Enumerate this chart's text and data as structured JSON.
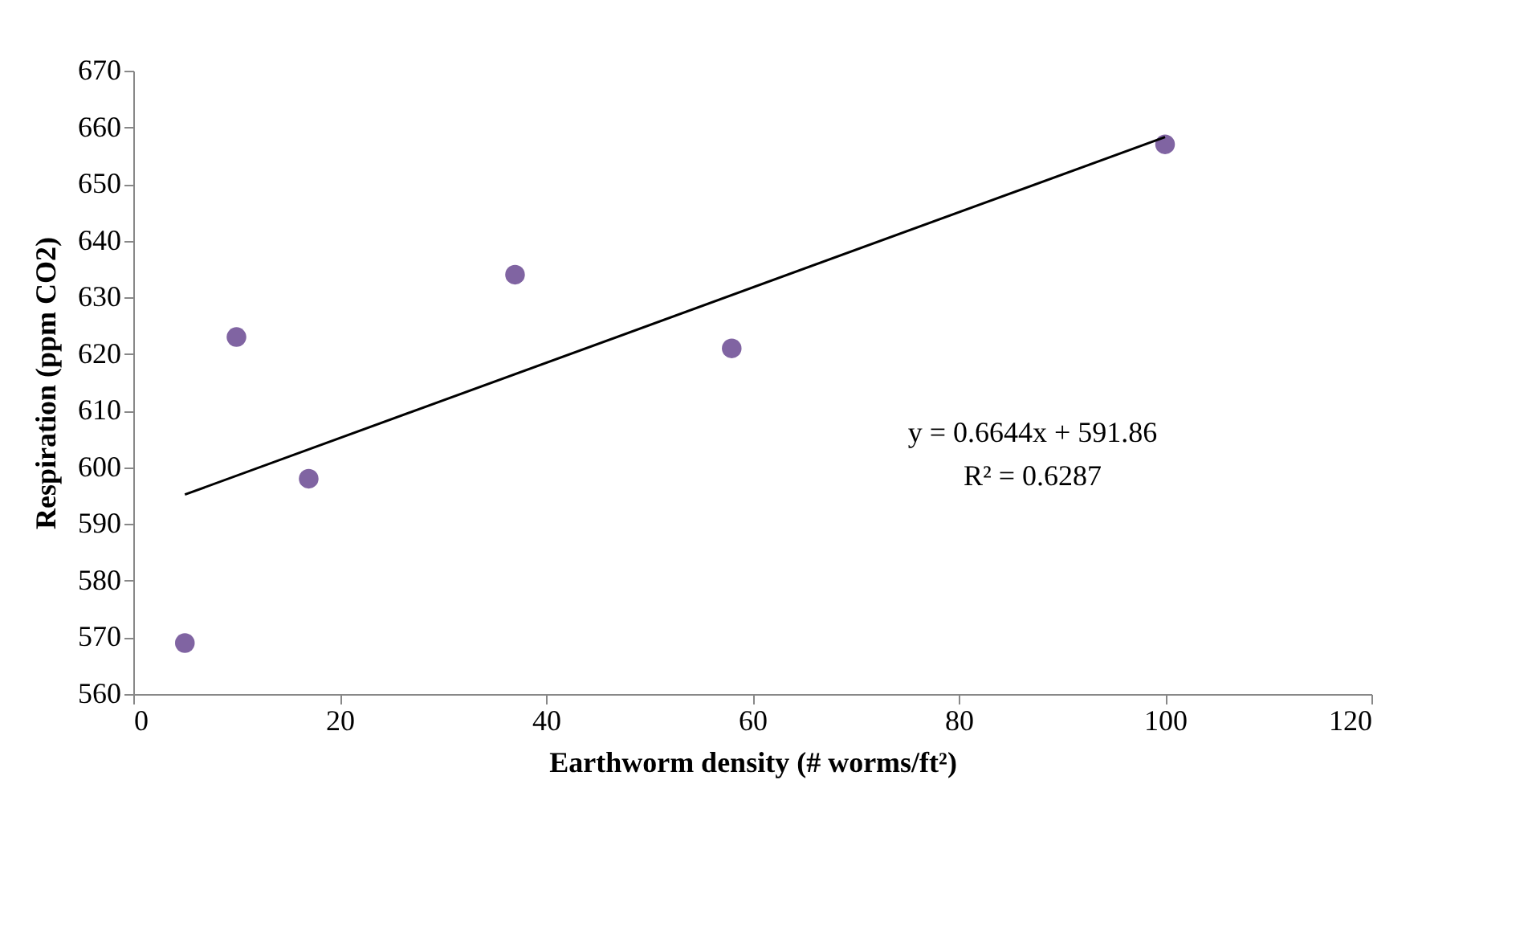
{
  "chart_data": {
    "type": "scatter",
    "xlabel": "Earthworm density (# worms/ft²)",
    "ylabel": "Respiration (ppm CO2)",
    "series": [
      {
        "color": "#8064a2",
        "marker": "circle",
        "x": [
          5,
          10,
          17,
          37,
          58,
          100
        ],
        "values": [
          569,
          623,
          598,
          634,
          621,
          657
        ]
      },
      {
        "type": "line",
        "color": "#000000",
        "marker": "none",
        "line_style": "solid",
        "x": [
          5,
          100
        ],
        "values": [
          595.2,
          658.3
        ]
      }
    ],
    "annotations": [
      "y = 0.6644x + 591.86",
      "R² = 0.6287"
    ],
    "xlim": [
      0,
      120
    ],
    "xticks": [
      0,
      20,
      40,
      60,
      80,
      100,
      120
    ],
    "ylim": [
      560,
      670
    ],
    "yticks": [
      560,
      570,
      580,
      590,
      600,
      610,
      620,
      630,
      640,
      650,
      660,
      670
    ],
    "grid": false,
    "legend": false
  }
}
